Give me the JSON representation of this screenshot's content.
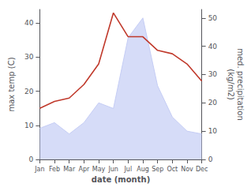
{
  "chart_data": {
    "type": "line",
    "xlabel": "date (month)",
    "ylabel": "max temp (C)",
    "y2label": "med. precipitation\n(kg/m2)",
    "categories": [
      "Jan",
      "Feb",
      "Mar",
      "Apr",
      "May",
      "Jun",
      "Jul",
      "Aug",
      "Sep",
      "Oct",
      "Nov",
      "Dec"
    ],
    "series": [
      {
        "type": "area",
        "axis": "y2",
        "color": "#c5cdf5",
        "values": [
          11,
          13,
          9,
          13,
          20,
          18,
          43,
          50,
          26,
          15,
          10,
          9
        ]
      },
      {
        "type": "line",
        "color": "#c0392b",
        "values": [
          15,
          17,
          18,
          22,
          28,
          43,
          36,
          36,
          32,
          31,
          28,
          23
        ]
      }
    ],
    "ylim": [
      0,
      44
    ],
    "yticks": [
      0,
      10,
      20,
      30,
      40
    ],
    "y2lim": [
      0,
      53
    ],
    "y2ticks": [
      0,
      10,
      20,
      30,
      40,
      50
    ],
    "grid": false
  }
}
